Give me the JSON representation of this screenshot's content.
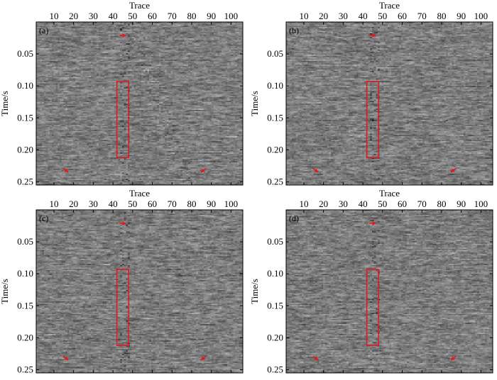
{
  "chart_data": {
    "type": "heatmap",
    "colormap": "grayscale",
    "xlabel": "Trace",
    "ylabel": "Time/s",
    "x_axis_position": "top",
    "xlim": [
      1,
      106
    ],
    "ylim": [
      0.0,
      0.255
    ],
    "x_ticks": [
      "10",
      "20",
      "30",
      "40",
      "50",
      "60",
      "70",
      "80",
      "90",
      "100"
    ],
    "y_ticks": [
      "0.05",
      "0.10",
      "0.15",
      "0.20",
      "0.25"
    ],
    "x_tick_values": [
      10,
      20,
      30,
      40,
      50,
      60,
      70,
      80,
      90,
      100
    ],
    "y_tick_values": [
      0.05,
      0.1,
      0.15,
      0.2,
      0.25
    ],
    "highlight_box": {
      "x": [
        42,
        48
      ],
      "y": [
        0.093,
        0.212
      ],
      "color": "#e0191f"
    },
    "arrow_color": "#e0191f",
    "panels": [
      {
        "label": "(a)",
        "show_ylabel": true,
        "arrows": [
          {
            "x": 45,
            "y": 0.021,
            "dir": "right"
          },
          {
            "x": 16,
            "y": 0.232,
            "dir": "down-right"
          },
          {
            "x": 86,
            "y": 0.232,
            "dir": "down-left"
          }
        ]
      },
      {
        "label": "(b)",
        "show_ylabel": true,
        "arrows": [
          {
            "x": 45,
            "y": 0.021,
            "dir": "right"
          },
          {
            "x": 16,
            "y": 0.232,
            "dir": "down-right"
          },
          {
            "x": 86,
            "y": 0.232,
            "dir": "down-left"
          }
        ]
      },
      {
        "label": "(c)",
        "show_ylabel": true,
        "arrows": [
          {
            "x": 45,
            "y": 0.021,
            "dir": "right"
          },
          {
            "x": 16,
            "y": 0.232,
            "dir": "down-right"
          },
          {
            "x": 86,
            "y": 0.232,
            "dir": "down-left"
          }
        ]
      },
      {
        "label": "(d)",
        "show_ylabel": true,
        "arrows": [
          {
            "x": 45,
            "y": 0.021,
            "dir": "right"
          },
          {
            "x": 16,
            "y": 0.232,
            "dir": "down-right"
          },
          {
            "x": 86,
            "y": 0.232,
            "dir": "down-left"
          }
        ]
      }
    ]
  }
}
